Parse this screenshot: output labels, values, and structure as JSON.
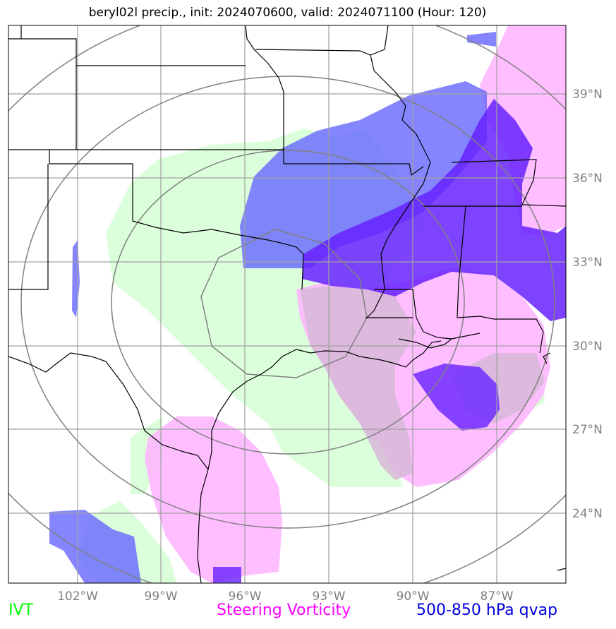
{
  "title": "beryl02l precip., init: 2024070600, valid: 2024071100 (Hour: 120)",
  "lon_labels": [
    "102°W",
    "99°W",
    "96°W",
    "93°W",
    "90°W",
    "87°W"
  ],
  "lat_labels": [
    "39°N",
    "36°N",
    "33°N",
    "30°N",
    "27°N",
    "24°N"
  ],
  "legend": {
    "ivt": {
      "label": "IVT",
      "color": "#00ff00"
    },
    "vorticity": {
      "label": "Steering Vorticity",
      "color": "#ff00ff"
    },
    "qvap": {
      "label": "500-850 hPa qvap",
      "color": "#0000dd"
    }
  },
  "colors": {
    "ivt_fill": "#ccffcc",
    "vorticity_fill": "#ffb3ff",
    "qvap_fill": "#6666ff",
    "qvap_dark_fill": "#6622ff",
    "grid": "#a0a0a0",
    "range_rings": "#808080",
    "borders": "#000000"
  }
}
